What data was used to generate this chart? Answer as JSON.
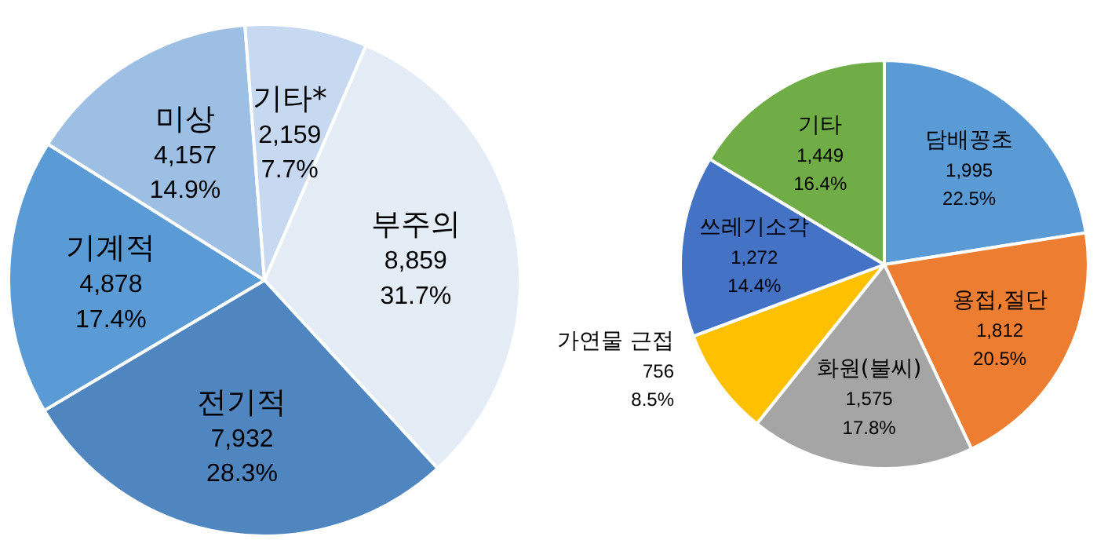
{
  "chart_data": [
    {
      "type": "pie",
      "categories": [
        "부주의",
        "전기적",
        "기계적",
        "미상",
        "기타*"
      ],
      "values": [
        8859,
        7932,
        4878,
        4157,
        2159
      ],
      "colors": [
        "#e4ecf6",
        "#4f86c0",
        "#5b9bd5",
        "#9dbfe4",
        "#c6d9f0"
      ],
      "value_labels": [
        "8,859\n31.7%",
        "7,932\n28.3%",
        "4,878\n17.4%",
        "4,157\n14.9%",
        "2,159\n7.7%"
      ]
    },
    {
      "type": "pie",
      "categories": [
        "담배꽁초",
        "용접,절단",
        "화원(불씨)",
        "가연물 근접",
        "쓰레기소각",
        "기타"
      ],
      "values": [
        1995,
        1812,
        1575,
        756,
        1272,
        1449
      ],
      "colors": [
        "#5b9bd5",
        "#ed7d31",
        "#a5a5a5",
        "#ffc000",
        "#4472c4",
        "#70ad47"
      ],
      "value_labels": [
        "1,995\n22.5%",
        "1,812\n20.5%",
        "1,575\n17.8%",
        "756\n8.5%",
        "1,272\n14.4%",
        "1,449\n16.4%"
      ]
    }
  ]
}
